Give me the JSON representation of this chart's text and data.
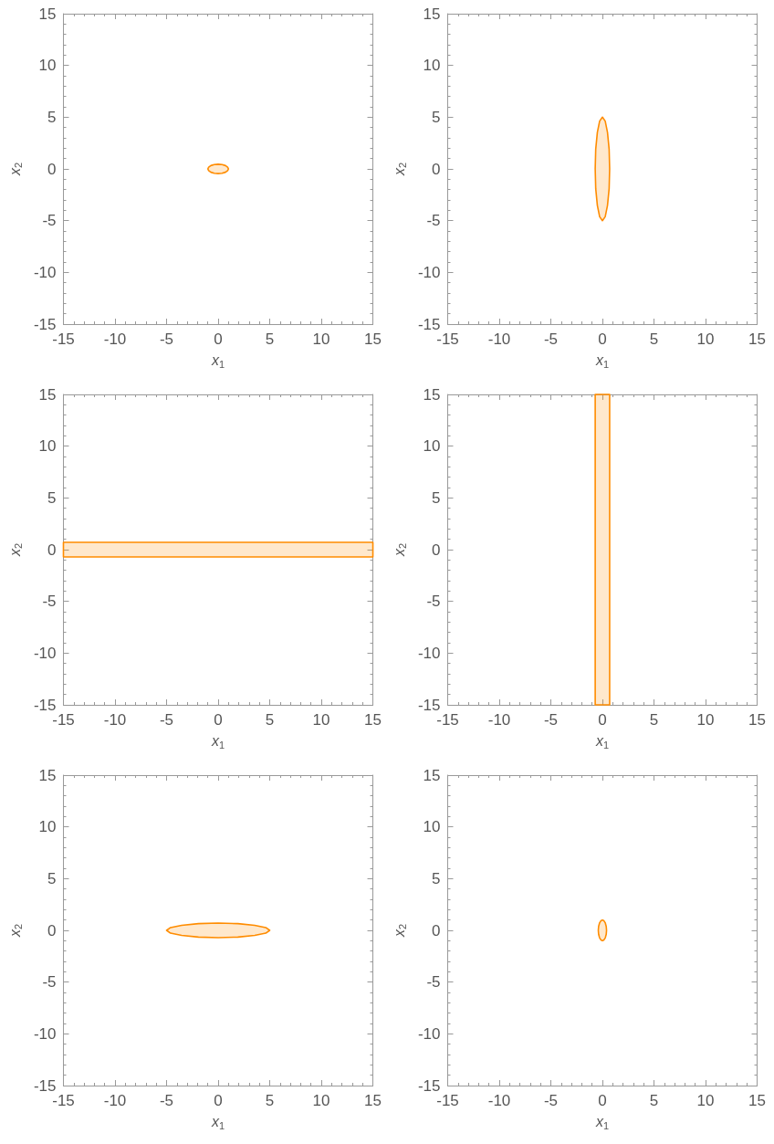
{
  "chart_data": [
    {
      "type": "area",
      "xlabel": "x$_{1}$",
      "ylabel": "x$_{2}$",
      "xlim": [
        -15,
        15
      ],
      "ylim": [
        -15,
        15
      ],
      "xticks": [
        -15,
        -10,
        -5,
        0,
        5,
        10,
        15
      ],
      "yticks": [
        -15,
        -10,
        -5,
        0,
        5,
        10,
        15
      ],
      "series": [
        {
          "color": "#ff8c00",
          "x": [
            1,
            0.92,
            0.71,
            0.38,
            0,
            -0.38,
            -0.71,
            -0.92,
            -1,
            -0.92,
            -0.71,
            -0.38,
            0,
            0.38,
            0.71,
            0.92
          ],
          "values": [
            0,
            0.17,
            0.32,
            0.42,
            0.45,
            0.42,
            0.32,
            0.17,
            0,
            -0.17,
            -0.32,
            -0.42,
            -0.45,
            -0.42,
            -0.32,
            -0.17
          ]
        }
      ]
    },
    {
      "type": "area",
      "xlabel": "x$_{1}$",
      "ylabel": "x$_{2}$",
      "xlim": [
        -15,
        15
      ],
      "ylim": [
        -15,
        15
      ],
      "xticks": [
        -15,
        -10,
        -5,
        0,
        5,
        10,
        15
      ],
      "yticks": [
        -15,
        -10,
        -5,
        0,
        5,
        10,
        15
      ],
      "series": [
        {
          "color": "#ff8c00",
          "x": [
            0.7,
            0.65,
            0.49,
            0.27,
            0,
            -0.27,
            -0.49,
            -0.65,
            -0.7,
            -0.65,
            -0.49,
            -0.27,
            0,
            0.27,
            0.49,
            0.65
          ],
          "values": [
            0,
            1.91,
            3.54,
            4.62,
            5,
            4.62,
            3.54,
            1.91,
            0,
            -1.91,
            -3.54,
            -4.62,
            -5,
            -4.62,
            -3.54,
            -1.91
          ]
        }
      ]
    },
    {
      "type": "area",
      "xlabel": "x$_{1}$",
      "ylabel": "x$_{2}$",
      "xlim": [
        -15,
        15
      ],
      "ylim": [
        -15,
        15
      ],
      "xticks": [
        -15,
        -10,
        -5,
        0,
        5,
        10,
        15
      ],
      "yticks": [
        -15,
        -10,
        -5,
        0,
        5,
        10,
        15
      ],
      "series": [
        {
          "color": "#ff8c00",
          "x": [
            -15,
            15,
            15,
            -15
          ],
          "values": [
            -0.7,
            -0.7,
            0.7,
            0.7
          ]
        }
      ]
    },
    {
      "type": "area",
      "xlabel": "x$_{1}$",
      "ylabel": "x$_{2}$",
      "xlim": [
        -15,
        15
      ],
      "ylim": [
        -15,
        15
      ],
      "xticks": [
        -15,
        -10,
        -5,
        0,
        5,
        10,
        15
      ],
      "yticks": [
        -15,
        -10,
        -5,
        0,
        5,
        10,
        15
      ],
      "series": [
        {
          "color": "#ff8c00",
          "x": [
            -0.7,
            0.7,
            0.7,
            -0.7
          ],
          "values": [
            -15,
            -15,
            15,
            15
          ]
        }
      ]
    },
    {
      "type": "area",
      "xlabel": "x$_{1}$",
      "ylabel": "x$_{2}$",
      "xlim": [
        -15,
        15
      ],
      "ylim": [
        -15,
        15
      ],
      "xticks": [
        -15,
        -10,
        -5,
        0,
        5,
        10,
        15
      ],
      "yticks": [
        -15,
        -10,
        -5,
        0,
        5,
        10,
        15
      ],
      "series": [
        {
          "color": "#ff8c00",
          "x": [
            5,
            4.62,
            3.54,
            1.91,
            0,
            -1.91,
            -3.54,
            -4.62,
            -5,
            -4.62,
            -3.54,
            -1.91,
            0,
            1.91,
            3.54,
            4.62
          ],
          "values": [
            0,
            0.27,
            0.49,
            0.65,
            0.7,
            0.65,
            0.49,
            0.27,
            0,
            -0.27,
            -0.49,
            -0.65,
            -0.7,
            -0.65,
            -0.49,
            -0.27
          ]
        }
      ]
    },
    {
      "type": "area",
      "xlabel": "x$_{1}$",
      "ylabel": "x$_{2}$",
      "xlim": [
        -15,
        15
      ],
      "ylim": [
        -15,
        15
      ],
      "xticks": [
        -15,
        -10,
        -5,
        0,
        5,
        10,
        15
      ],
      "yticks": [
        -15,
        -10,
        -5,
        0,
        5,
        10,
        15
      ],
      "series": [
        {
          "color": "#ff8c00",
          "x": [
            0.4,
            0.37,
            0.28,
            0.15,
            0,
            -0.15,
            -0.28,
            -0.37,
            -0.4,
            -0.37,
            -0.28,
            -0.15,
            0,
            0.15,
            0.28,
            0.37
          ],
          "values": [
            0,
            0.38,
            0.71,
            0.92,
            1,
            0.92,
            0.71,
            0.38,
            0,
            -0.38,
            -0.71,
            -0.92,
            -1,
            -0.92,
            -0.71,
            -0.38
          ]
        }
      ]
    }
  ]
}
